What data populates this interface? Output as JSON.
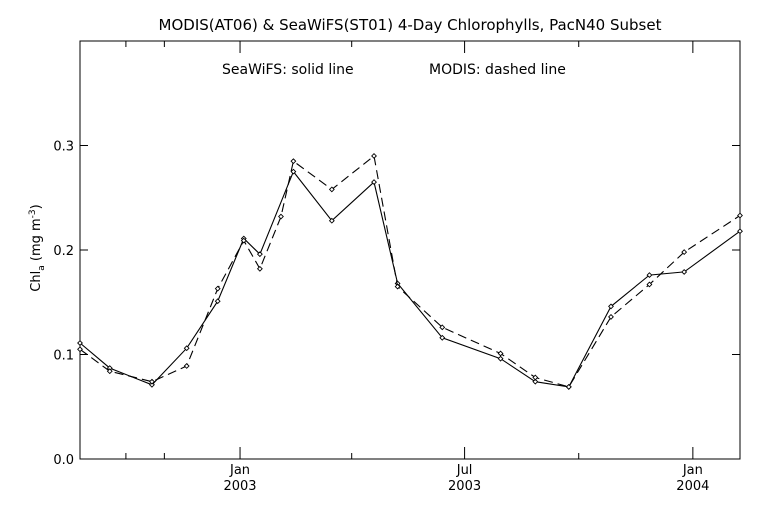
{
  "chart_data": {
    "type": "line",
    "title": "MODIS(AT06) & SeaWiFS(ST01) 4-Day Chlorophylls, PacN40 Subset",
    "legend_text": {
      "left": "SeaWiFS: solid line",
      "right": "MODIS: dashed line"
    },
    "ylabel_main": "Chl",
    "ylabel_subscript": "a",
    "ylabel_units_prefix": " (mg m",
    "ylabel_units_sup": "-3",
    "ylabel_units_suffix": ")",
    "ylim": [
      0.0,
      0.4
    ],
    "yticks": [
      0.0,
      0.1,
      0.2,
      0.3
    ],
    "ytick_labels": [
      "0.0",
      "0.1",
      "0.2",
      "0.3"
    ],
    "xlim": [
      "2002-08-25",
      "2004-02-08"
    ],
    "x_major_ticks": [
      {
        "date": "2003-01-01",
        "month": "Jan",
        "year": "2003"
      },
      {
        "date": "2003-07-01",
        "month": "Jul",
        "year": "2003"
      },
      {
        "date": "2004-01-01",
        "month": "Jan",
        "year": "2004"
      }
    ],
    "x_minor_ticks": [
      "2002-10-01",
      "2002-11-01",
      "2003-04-01",
      "2003-10-01"
    ],
    "series": [
      {
        "name": "SeaWiFS",
        "style": "solid",
        "color": "#000000",
        "points": [
          {
            "x": "2002-08-25",
            "y": 0.111
          },
          {
            "x": "2002-09-18",
            "y": 0.087
          },
          {
            "x": "2002-10-22",
            "y": 0.071
          },
          {
            "x": "2002-11-19",
            "y": 0.106
          },
          {
            "x": "2002-12-14",
            "y": 0.151
          },
          {
            "x": "2003-01-04",
            "y": 0.211
          },
          {
            "x": "2003-01-17",
            "y": 0.196
          },
          {
            "x": "2003-02-13",
            "y": 0.275
          },
          {
            "x": "2003-03-16",
            "y": 0.228
          },
          {
            "x": "2003-04-19",
            "y": 0.265
          },
          {
            "x": "2003-05-08",
            "y": 0.168
          },
          {
            "x": "2003-06-13",
            "y": 0.116
          },
          {
            "x": "2003-07-30",
            "y": 0.096
          },
          {
            "x": "2003-08-27",
            "y": 0.074
          },
          {
            "x": "2003-09-23",
            "y": 0.069
          },
          {
            "x": "2003-10-27",
            "y": 0.146
          },
          {
            "x": "2003-11-27",
            "y": 0.176
          },
          {
            "x": "2003-12-25",
            "y": 0.179
          },
          {
            "x": "2004-02-08",
            "y": 0.218
          }
        ]
      },
      {
        "name": "MODIS",
        "style": "dashed",
        "color": "#000000",
        "points": [
          {
            "x": "2002-08-25",
            "y": 0.105
          },
          {
            "x": "2002-09-18",
            "y": 0.084
          },
          {
            "x": "2002-10-22",
            "y": 0.074
          },
          {
            "x": "2002-11-19",
            "y": 0.089
          },
          {
            "x": "2002-12-14",
            "y": 0.163
          },
          {
            "x": "2003-01-04",
            "y": 0.209
          },
          {
            "x": "2003-01-17",
            "y": 0.182
          },
          {
            "x": "2003-02-03",
            "y": 0.232
          },
          {
            "x": "2003-02-13",
            "y": 0.285
          },
          {
            "x": "2003-03-16",
            "y": 0.258
          },
          {
            "x": "2003-04-19",
            "y": 0.29
          },
          {
            "x": "2003-05-08",
            "y": 0.165
          },
          {
            "x": "2003-06-13",
            "y": 0.126
          },
          {
            "x": "2003-07-30",
            "y": 0.101
          },
          {
            "x": "2003-08-27",
            "y": 0.078
          },
          {
            "x": "2003-09-23",
            "y": 0.069
          },
          {
            "x": "2003-10-27",
            "y": 0.136
          },
          {
            "x": "2003-11-27",
            "y": 0.167
          },
          {
            "x": "2003-12-25",
            "y": 0.198
          },
          {
            "x": "2004-02-08",
            "y": 0.233
          }
        ]
      }
    ],
    "grid": false
  }
}
